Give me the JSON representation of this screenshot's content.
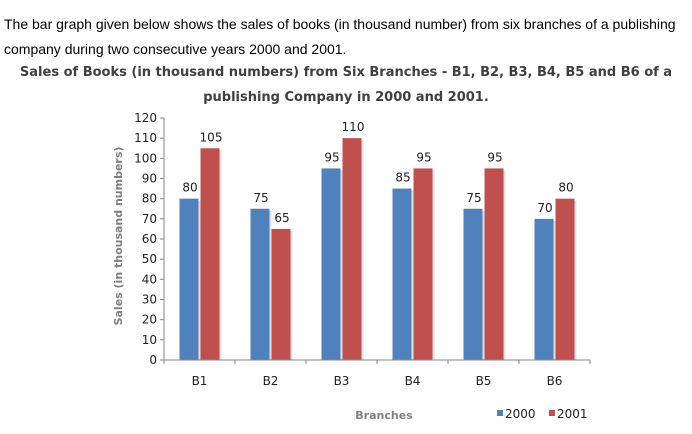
{
  "intro_text": "The bar graph given below shows the sales of books (in thousand number) from six branches of a publishing company during two consecutive years 2000 and 2001.",
  "colors": {
    "s2000": "#4f81bd",
    "s2001": "#c0504d",
    "axis": "#868686",
    "grid": "#e6e6e6"
  },
  "chart_data": {
    "type": "bar",
    "title_line1": "Sales of Books (in thousand numbers) from Six Branches - B1, B2, B3, B4, B5 and B6 of a",
    "title_line2": "publishing Company in 2000 and 2001.",
    "xlabel": "Branches",
    "ylabel": "Sales (in thousand numbers)",
    "categories": [
      "B1",
      "B2",
      "B3",
      "B4",
      "B5",
      "B6"
    ],
    "series": [
      {
        "name": "2000",
        "values": [
          80,
          75,
          95,
          85,
          75,
          70
        ]
      },
      {
        "name": "2001",
        "values": [
          105,
          65,
          110,
          95,
          95,
          80
        ]
      }
    ],
    "ylim": [
      0,
      120
    ],
    "yticks": [
      0,
      10,
      20,
      30,
      40,
      50,
      60,
      70,
      80,
      90,
      100,
      110,
      120
    ],
    "grid": false,
    "legend_position": "bottom-right",
    "data_labels": true
  }
}
